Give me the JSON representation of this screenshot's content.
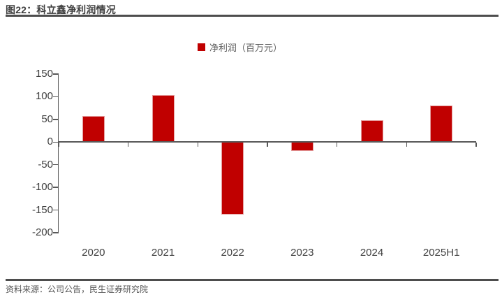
{
  "header": {
    "title": "图22：科立鑫净利润情况"
  },
  "legend": {
    "label": "净利润（百万元）"
  },
  "footer": {
    "source": "资料来源：公司公告，民生证券研究院"
  },
  "chart_data": {
    "type": "bar",
    "title": "科立鑫净利润情况",
    "legend": [
      "净利润（百万元）"
    ],
    "categories": [
      "2020",
      "2021",
      "2022",
      "2023",
      "2024",
      "2025H1"
    ],
    "values": [
      57,
      103,
      -160,
      -20,
      48,
      81
    ],
    "ylabel": "净利润（百万元）",
    "xlabel": "",
    "ylim": [
      -200,
      150
    ],
    "yticks": [
      150,
      100,
      50,
      0,
      -50,
      -100,
      -150,
      -200
    ],
    "grid": false,
    "legend_position": "top-center",
    "bar_color": "#C00000",
    "bar_border_color": "#E39C9C",
    "axis_color": "#595959"
  }
}
